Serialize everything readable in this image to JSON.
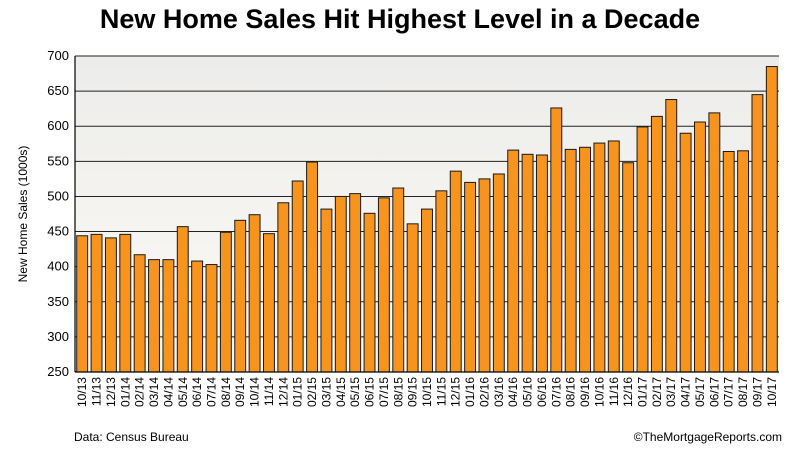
{
  "chart_data": {
    "type": "bar",
    "title": "New Home Sales Hit Highest Level in a Decade",
    "ylabel": "New Home Sales (1000s)",
    "xlabel": "",
    "ylim": [
      250,
      700
    ],
    "yticks": [
      250,
      300,
      350,
      400,
      450,
      500,
      550,
      600,
      650,
      700
    ],
    "grid": true,
    "categories": [
      "10/13",
      "11/13",
      "12/13",
      "01/14",
      "02/14",
      "03/14",
      "04/14",
      "05/14",
      "06/14",
      "07/14",
      "08/14",
      "09/14",
      "10/14",
      "11/14",
      "12/14",
      "01/15",
      "02/15",
      "03/15",
      "04/15",
      "05/15",
      "06/15",
      "07/15",
      "08/15",
      "09/15",
      "10/15",
      "11/15",
      "12/15",
      "01/16",
      "02/16",
      "03/16",
      "04/16",
      "05/16",
      "06/16",
      "07/16",
      "08/16",
      "09/16",
      "10/16",
      "11/16",
      "12/16",
      "01/17",
      "02/17",
      "03/17",
      "04/17",
      "05/17",
      "06/17",
      "07/17",
      "08/17",
      "09/17",
      "10/17"
    ],
    "values": [
      444,
      446,
      441,
      446,
      417,
      410,
      410,
      457,
      408,
      403,
      449,
      466,
      474,
      447,
      491,
      522,
      549,
      482,
      500,
      504,
      476,
      498,
      512,
      461,
      482,
      508,
      536,
      520,
      525,
      532,
      566,
      560,
      559,
      626,
      567,
      570,
      576,
      579,
      548,
      599,
      614,
      638,
      590,
      606,
      619,
      564,
      565,
      645,
      685
    ],
    "bar_color": "#F7941D",
    "source": "Data: Census Bureau",
    "credit": "©TheMortgageReports.com"
  }
}
